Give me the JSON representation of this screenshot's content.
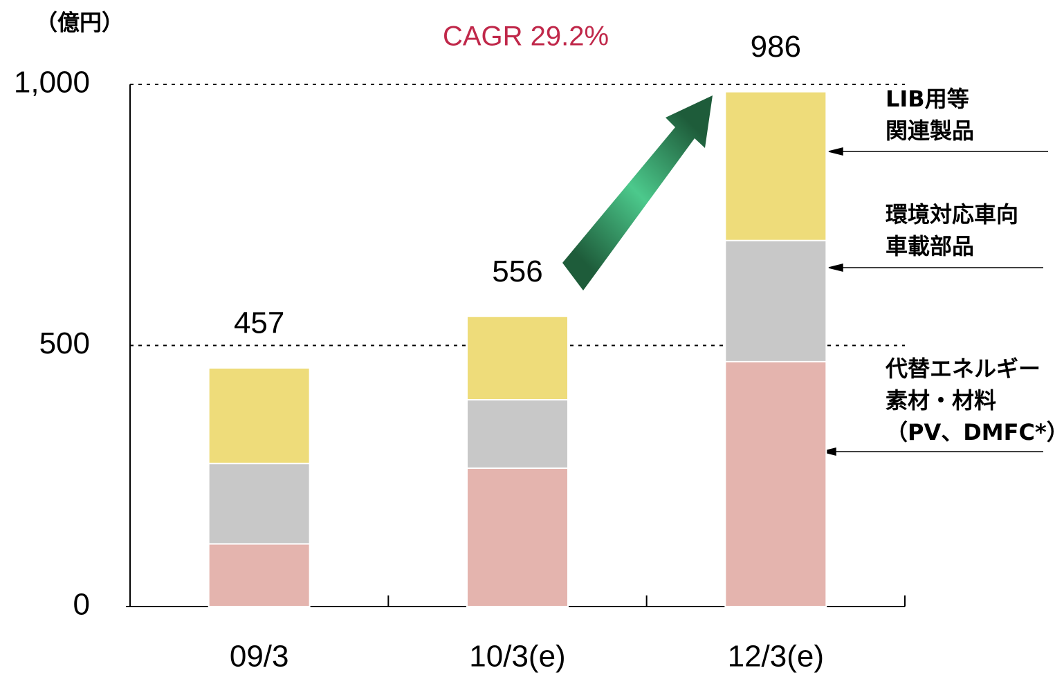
{
  "chart_data": {
    "type": "bar",
    "stacked": true,
    "unit_label": "（億円）",
    "annotation": "CAGR 29.2%",
    "annotation_color": "#c0284a",
    "categories": [
      "09/3",
      "10/3(e)",
      "12/3(e)"
    ],
    "series": [
      {
        "name": "代替エネルギー\n素材・材料\n（PV、DMFC*）",
        "color": "#e4b4ae",
        "values": [
          120,
          265,
          469
        ]
      },
      {
        "name": "環境対応車向\n車載部品",
        "color": "#c8c8c8",
        "values": [
          154,
          131,
          232
        ]
      },
      {
        "name": "LIB用等\n関連製品",
        "color": "#eedc7a",
        "values": [
          183,
          160,
          285
        ]
      }
    ],
    "totals": [
      457,
      556,
      986
    ],
    "ylim": [
      0,
      1000
    ],
    "yticks": [
      0,
      500,
      {
        "value": 1000,
        "label": "1,000"
      }
    ],
    "grid": true
  }
}
